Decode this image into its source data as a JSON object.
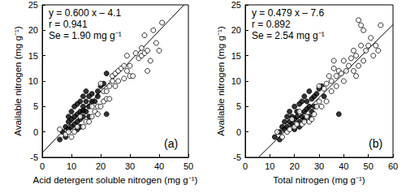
{
  "chart_data": [
    {
      "type": "scatter",
      "panel_label": "(a)",
      "x_label": "Acid detergent soluble nitrogen (mg g⁻¹)",
      "y_label": "Available nitrogen (mg g⁻¹)",
      "annotations": [
        "y = 0.600 x – 4.1",
        "r = 0.941",
        "Se = 1.90 mg g⁻¹"
      ],
      "xlim": [
        0,
        50
      ],
      "xticks": [
        0,
        10,
        20,
        30,
        40,
        50
      ],
      "ylim": [
        -5,
        25
      ],
      "yticks": [
        -5,
        0,
        5,
        10,
        15,
        20,
        25
      ],
      "series": [
        {
          "type": "scatter",
          "marker": "filled_circle",
          "color": "#000000",
          "x": [
            6,
            7,
            8,
            8,
            9,
            9,
            10,
            10,
            10,
            11,
            11,
            11,
            12,
            12,
            12,
            13,
            13,
            13,
            14,
            14,
            14,
            15,
            15,
            15,
            16,
            16,
            17,
            17,
            18,
            19,
            19,
            20,
            21,
            22,
            22,
            13,
            12,
            14,
            9,
            16
          ],
          "values": [
            -1.5,
            0,
            -1,
            1,
            0.5,
            2,
            1,
            2.5,
            4,
            1.5,
            3,
            5,
            2,
            3.5,
            5.5,
            2.5,
            4,
            6,
            3,
            5,
            7,
            4,
            6,
            8,
            5,
            3,
            6,
            7.5,
            6,
            7,
            8,
            9,
            9.5,
            11.5,
            3.5,
            1,
            0.5,
            4.2,
            3,
            7
          ]
        },
        {
          "type": "scatter",
          "marker": "open_circle",
          "color": "#000000",
          "x": [
            6,
            8,
            9,
            10,
            11,
            12,
            13,
            14,
            15,
            16,
            17,
            17,
            18,
            19,
            19,
            20,
            20,
            21,
            21,
            22,
            22,
            23,
            23,
            24,
            24,
            25,
            25,
            26,
            26,
            27,
            28,
            28,
            29,
            29,
            30,
            30,
            31,
            32,
            33,
            34,
            34,
            35,
            35,
            36,
            36,
            37,
            38,
            39,
            40,
            41
          ],
          "values": [
            0.5,
            -0.5,
            0,
            -1,
            0,
            1,
            3,
            1,
            2,
            2,
            3,
            5,
            4,
            5,
            3.5,
            5,
            9.5,
            6,
            8,
            8,
            6.5,
            9,
            6.5,
            11,
            10,
            11.5,
            9,
            12,
            10,
            12.5,
            10.5,
            13,
            12,
            15,
            13,
            11,
            11,
            15.5,
            14.5,
            15,
            16.5,
            15.5,
            19,
            12,
            16,
            14,
            20,
            17.5,
            16,
            21.5
          ]
        },
        {
          "type": "line",
          "line_style": "solid",
          "color": "#000000",
          "x": [
            0,
            48.5
          ],
          "values": [
            -4.1,
            25
          ]
        }
      ]
    },
    {
      "type": "scatter",
      "panel_label": "(b)",
      "x_label": "Total nitrogen (mg g⁻¹)",
      "y_label": "Available nitrogen (mg g⁻¹)",
      "annotations": [
        "y = 0.479 x – 7.6",
        "r = 0.892",
        "Se = 2.54 mg g⁻¹"
      ],
      "xlim": [
        0,
        60
      ],
      "xticks": [
        0,
        10,
        20,
        30,
        40,
        50,
        60
      ],
      "ylim": [
        -5,
        25
      ],
      "yticks": [
        -5,
        0,
        5,
        10,
        15,
        20,
        25
      ],
      "series": [
        {
          "type": "scatter",
          "marker": "filled_circle",
          "color": "#000000",
          "x": [
            12,
            14,
            14,
            15,
            16,
            16,
            17,
            17,
            18,
            18,
            19,
            19,
            20,
            20,
            21,
            21,
            22,
            22,
            23,
            23,
            24,
            24,
            25,
            25,
            26,
            26,
            27,
            28,
            28,
            29,
            30,
            22,
            20,
            24,
            26,
            27,
            31,
            32,
            38
          ],
          "values": [
            -1,
            -1.5,
            0,
            1,
            0.5,
            2,
            1,
            3,
            2,
            4,
            1.5,
            3,
            2.5,
            5,
            3,
            4,
            2,
            5.5,
            3,
            6,
            4,
            7,
            4.5,
            6,
            5,
            3,
            6.5,
            7,
            5,
            7.5,
            8.5,
            1,
            0.5,
            2.5,
            8,
            4,
            9,
            7,
            3.5
          ]
        },
        {
          "type": "scatter",
          "marker": "open_circle",
          "color": "#000000",
          "x": [
            13,
            15,
            17,
            18,
            19,
            20,
            21,
            22,
            23,
            24,
            25,
            26,
            27,
            28,
            29,
            30,
            30,
            31,
            32,
            33,
            33,
            34,
            35,
            35,
            36,
            37,
            37,
            38,
            39,
            40,
            40,
            41,
            42,
            43,
            44,
            44,
            45,
            45,
            46,
            46,
            47,
            47,
            48,
            48,
            49,
            50,
            51,
            52,
            53,
            54,
            55,
            36
          ],
          "values": [
            0,
            -1,
            0,
            0.5,
            2.5,
            1,
            1.5,
            4,
            1.5,
            2,
            3,
            2,
            2.5,
            3.5,
            5,
            6,
            9,
            5,
            8.5,
            9.5,
            6,
            11,
            10,
            8,
            12.5,
            11,
            9,
            12,
            11.5,
            10,
            14,
            12,
            13,
            14.5,
            16,
            12,
            15,
            11,
            13,
            22,
            17,
            21,
            20,
            14,
            16,
            17,
            18.5,
            15,
            17,
            16,
            21,
            14
          ]
        },
        {
          "type": "line",
          "line_style": "solid",
          "color": "#000000",
          "x": [
            5.4,
            60
          ],
          "values": [
            -5,
            21.1
          ]
        }
      ]
    }
  ]
}
